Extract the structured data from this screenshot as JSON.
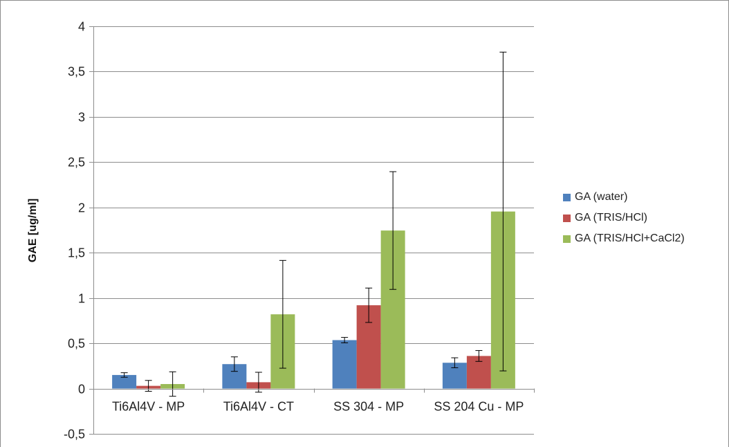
{
  "chart_data": {
    "type": "bar",
    "title": "",
    "xlabel": "",
    "ylabel": "GAE [ug/ml]",
    "ylim": [
      -0.5,
      4
    ],
    "yticks": [
      "-0,5",
      "0",
      "0,5",
      "1",
      "1,5",
      "2",
      "2,5",
      "3",
      "3,5",
      "4"
    ],
    "ytick_values": [
      -0.5,
      0,
      0.5,
      1,
      1.5,
      2,
      2.5,
      3,
      3.5,
      4
    ],
    "grid": true,
    "legend_position": "right",
    "categories": [
      "Ti6Al4V - MP",
      "Ti6Al4V - CT",
      "SS 304 - MP",
      "SS 204 Cu - MP"
    ],
    "series": [
      {
        "name": "GA (water)",
        "color": "#4f81bd",
        "values": [
          0.15,
          0.27,
          0.535,
          0.285
        ],
        "errors": [
          0.025,
          0.08,
          0.03,
          0.055
        ]
      },
      {
        "name": "GA (TRIS/HCl)",
        "color": "#c0504d",
        "values": [
          0.03,
          0.07,
          0.92,
          0.36
        ],
        "errors": [
          0.06,
          0.11,
          0.19,
          0.06
        ]
      },
      {
        "name": "GA (TRIS/HCl+CaCl2)",
        "color": "#9bbb59",
        "values": [
          0.05,
          0.82,
          1.745,
          1.955
        ],
        "errors": [
          0.135,
          0.595,
          0.65,
          1.76
        ]
      }
    ]
  }
}
